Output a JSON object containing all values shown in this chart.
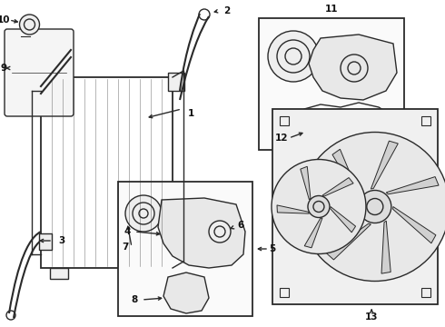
{
  "background": "#ffffff",
  "line_color": "#2a2a2a",
  "label_color": "#111111",
  "lw": 1.0,
  "fig_w": 4.9,
  "fig_h": 3.6,
  "dpi": 100
}
